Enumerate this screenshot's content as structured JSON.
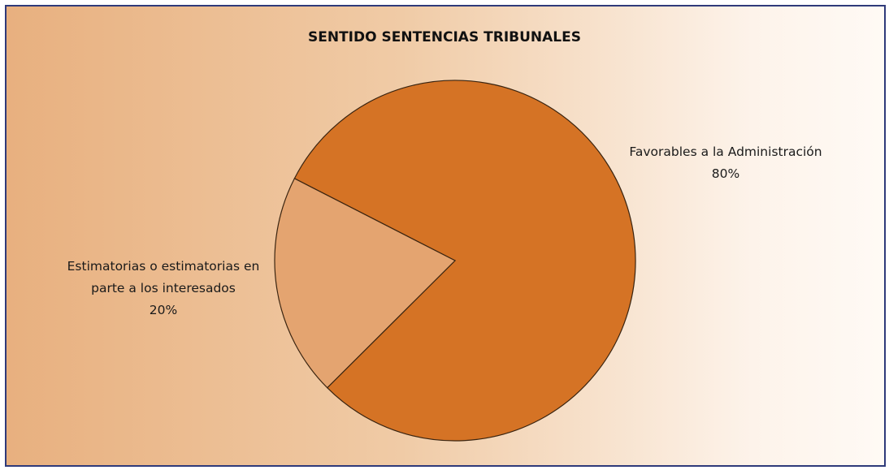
{
  "chart_data": {
    "type": "pie",
    "title": "SENTIDO SENTENCIAS TRIBUNALES",
    "categories": [
      "Favorables a la Administración",
      "Estimatorias o estimatorias en parte a los interesados"
    ],
    "values": [
      80,
      20
    ],
    "value_labels": [
      "80%",
      "20%"
    ],
    "colors": [
      "#d57325",
      "#e4a470"
    ]
  }
}
